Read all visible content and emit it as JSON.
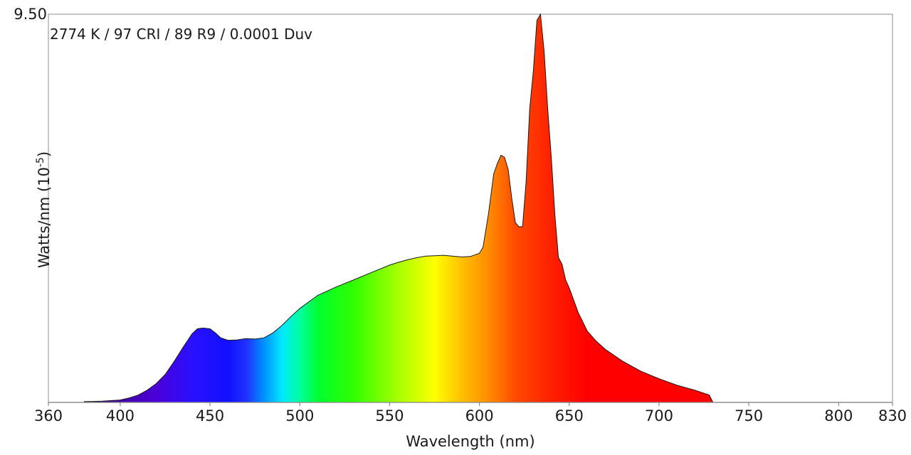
{
  "chart_data": {
    "type": "area",
    "annotation": "2774 K / 97 CRI / 89 R9 / 0.0001 Duv",
    "xlabel": "Wavelength (nm)",
    "ylabel_main": "Watts/nm (10",
    "ylabel_sup": "-5",
    "ylabel_close": ")",
    "xlim": [
      360,
      830
    ],
    "ylim": [
      0,
      9.5
    ],
    "xticks": [
      {
        "value": 360,
        "label": "360"
      },
      {
        "value": 400,
        "label": "400"
      },
      {
        "value": 450,
        "label": "450"
      },
      {
        "value": 500,
        "label": "500"
      },
      {
        "value": 550,
        "label": "550"
      },
      {
        "value": 600,
        "label": "600"
      },
      {
        "value": 650,
        "label": "650"
      },
      {
        "value": 700,
        "label": "700"
      },
      {
        "value": 750,
        "label": "750"
      },
      {
        "value": 800,
        "label": "800"
      },
      {
        "value": 830,
        "label": "830"
      }
    ],
    "yticks": [
      {
        "value": 9.5,
        "label": "9.50"
      }
    ],
    "fill": "spectral wavelength colors",
    "series": [
      {
        "x": [
          380,
          390,
          400,
          405,
          410,
          415,
          420,
          425,
          430,
          435,
          440,
          443,
          446,
          450,
          453,
          456,
          460,
          465,
          470,
          475,
          480,
          485,
          490,
          495,
          500,
          505,
          510,
          520,
          530,
          540,
          550,
          555,
          560,
          565,
          570,
          575,
          580,
          585,
          590,
          595,
          600,
          602,
          605,
          608,
          610,
          612,
          614,
          616,
          618,
          620,
          622,
          624,
          626,
          628,
          630,
          632,
          634,
          636,
          638,
          640,
          642,
          644,
          646,
          648,
          650,
          655,
          660,
          665,
          670,
          680,
          690,
          700,
          710,
          720,
          728,
          730
        ],
        "y": [
          0.02,
          0.03,
          0.06,
          0.11,
          0.18,
          0.3,
          0.46,
          0.68,
          1.0,
          1.35,
          1.68,
          1.8,
          1.82,
          1.8,
          1.7,
          1.58,
          1.52,
          1.53,
          1.56,
          1.55,
          1.58,
          1.7,
          1.88,
          2.1,
          2.3,
          2.46,
          2.62,
          2.82,
          3.0,
          3.18,
          3.36,
          3.43,
          3.49,
          3.54,
          3.58,
          3.59,
          3.6,
          3.58,
          3.56,
          3.57,
          3.65,
          3.8,
          4.6,
          5.6,
          5.85,
          6.05,
          6.0,
          5.7,
          5.0,
          4.4,
          4.3,
          4.3,
          5.4,
          7.2,
          8.1,
          9.35,
          9.5,
          8.6,
          7.2,
          6.0,
          4.6,
          3.55,
          3.38,
          3.0,
          2.8,
          2.2,
          1.75,
          1.5,
          1.3,
          1.0,
          0.76,
          0.58,
          0.42,
          0.3,
          0.18,
          0.0
        ]
      }
    ]
  }
}
